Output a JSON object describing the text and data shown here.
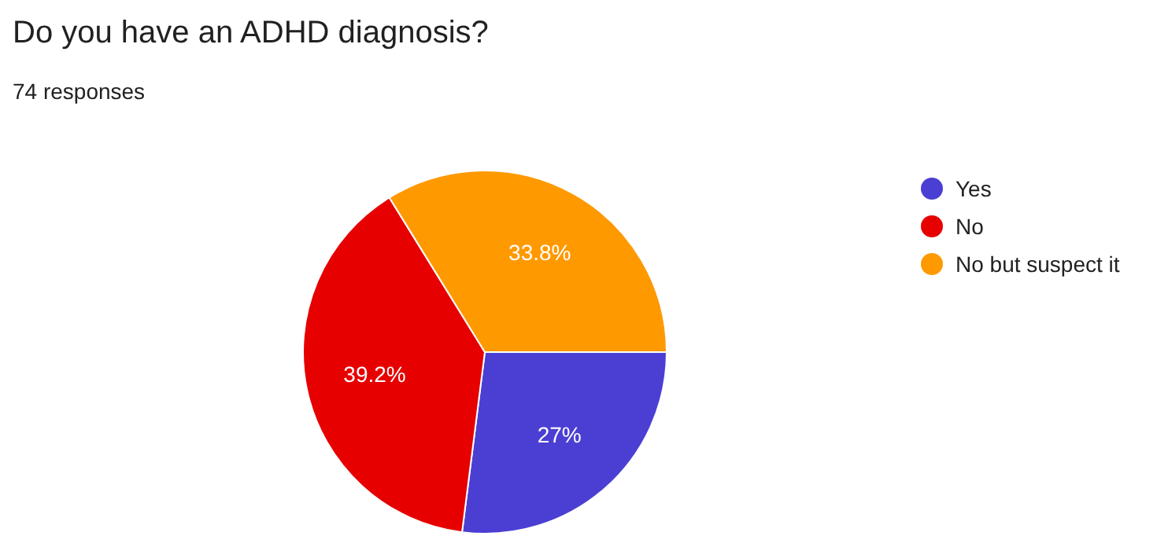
{
  "chart_data": {
    "type": "pie",
    "title": "Do you have an ADHD diagnosis?",
    "subtitle": "74 responses",
    "categories": [
      "Yes",
      "No",
      "No but suspect it"
    ],
    "values": [
      27,
      39.2,
      33.8
    ],
    "colors": [
      "#4b3fd3",
      "#e60000",
      "#ff9900"
    ],
    "value_labels": [
      "27%",
      "39.2%",
      "33.8%"
    ],
    "legend": "right"
  }
}
